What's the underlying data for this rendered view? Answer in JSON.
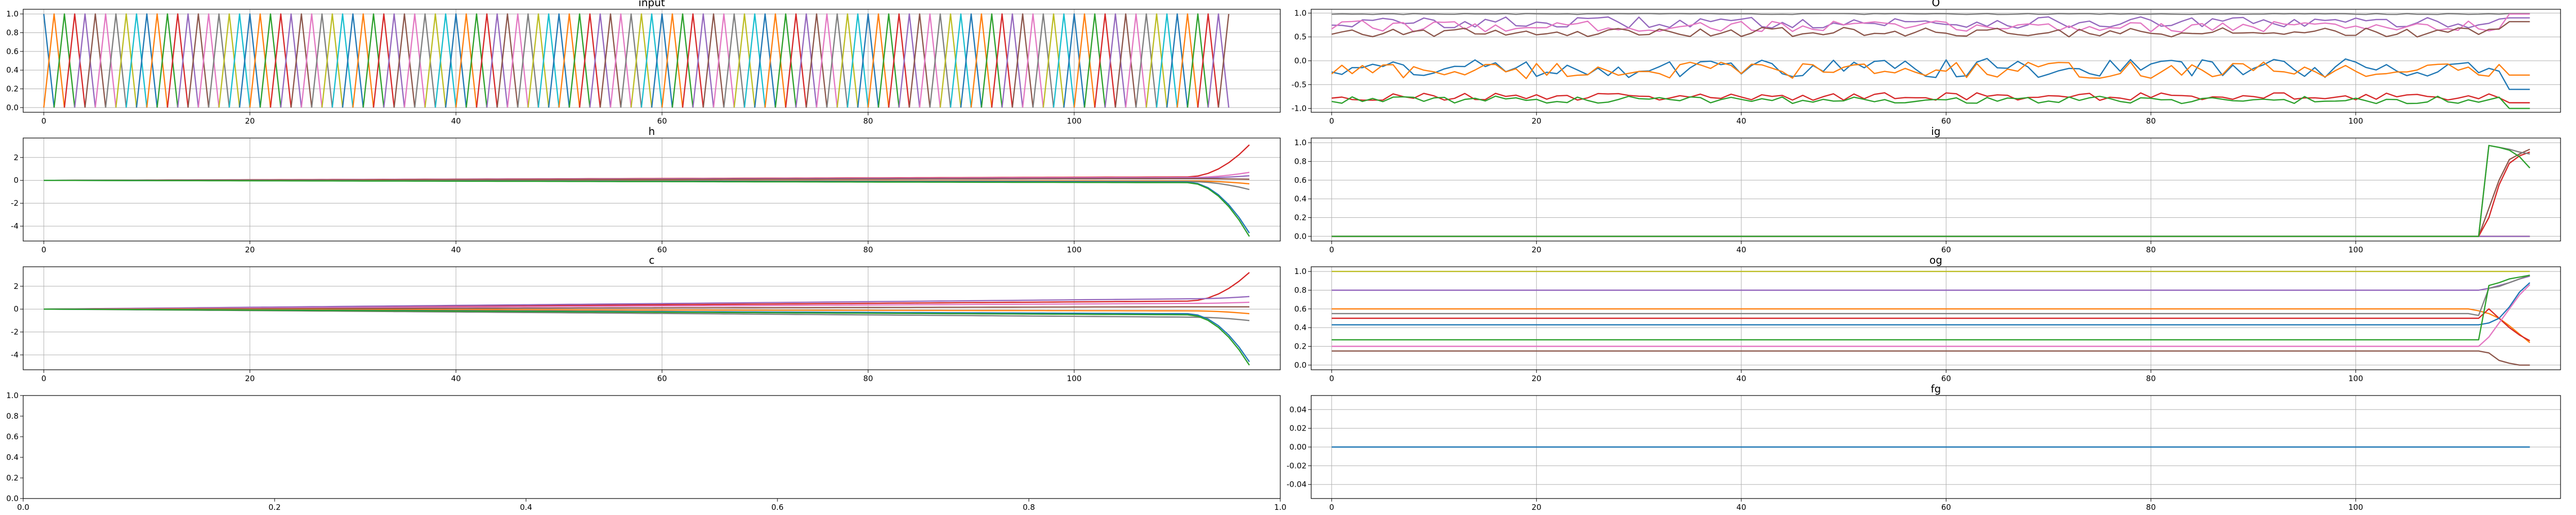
{
  "chart_data": [
    {
      "title": "input",
      "type": "line",
      "x_ticks": [
        "0",
        "20",
        "40",
        "60",
        "80",
        "100"
      ],
      "y_ticks": [
        "0.0",
        "0.2",
        "0.4",
        "0.6",
        "0.8",
        "1.0"
      ],
      "xlim": [
        -2,
        120
      ],
      "ylim": [
        -0.05,
        1.05
      ],
      "grid": true,
      "x": [
        0,
        115
      ],
      "series": [],
      "pattern": {
        "kind": "one_hot",
        "steps": 116,
        "value_high": 1.0,
        "value_low": 0.0
      }
    },
    {
      "title": "O",
      "type": "line",
      "x_ticks": [
        "0",
        "20",
        "40",
        "60",
        "80",
        "100"
      ],
      "y_ticks": [
        "-1.0",
        "-0.5",
        "0.0",
        "0.5",
        "1.0"
      ],
      "xlim": [
        -2,
        120
      ],
      "ylim": [
        -1.08,
        1.08
      ],
      "grid": true,
      "x": [
        0,
        117
      ],
      "series": [
        {
          "color": "#7f7f7f",
          "base": 0.98,
          "noise": 0.01,
          "end": 0.99
        },
        {
          "color": "#9467bd",
          "base": 0.8,
          "noise": 0.12,
          "end": 0.9
        },
        {
          "color": "#e377c2",
          "base": 0.72,
          "noise": 0.12,
          "end": 0.98
        },
        {
          "color": "#8c564b",
          "base": 0.6,
          "noise": 0.1,
          "end": 0.82
        },
        {
          "color": "#1f77b4",
          "base": -0.15,
          "noise": 0.2,
          "end": -0.6
        },
        {
          "color": "#ff7f0e",
          "base": -0.2,
          "noise": 0.18,
          "end": -0.3
        },
        {
          "color": "#d62728",
          "base": -0.75,
          "noise": 0.08,
          "end": -0.88
        },
        {
          "color": "#2ca02c",
          "base": -0.82,
          "noise": 0.08,
          "end": -1.0
        }
      ]
    },
    {
      "title": "h",
      "type": "line",
      "x_ticks": [
        "0",
        "20",
        "40",
        "60",
        "80",
        "100"
      ],
      "y_ticks": [
        "-4",
        "-2",
        "0",
        "2"
      ],
      "xlim": [
        -2,
        120
      ],
      "ylim": [
        -5.3,
        3.7
      ],
      "grid": true,
      "x": [
        0,
        117
      ],
      "series": [
        {
          "color": "#d62728",
          "drift": 0.3,
          "end": 3.1
        },
        {
          "color": "#e377c2",
          "drift": 0.25,
          "end": 0.7
        },
        {
          "color": "#9467bd",
          "drift": 0.2,
          "end": 0.4
        },
        {
          "color": "#8c564b",
          "drift": 0.15,
          "end": 0.1
        },
        {
          "color": "#ff7f0e",
          "drift": -0.05,
          "end": -0.3
        },
        {
          "color": "#7f7f7f",
          "drift": -0.1,
          "end": -0.8
        },
        {
          "color": "#1f77b4",
          "drift": -0.15,
          "end": -4.6
        },
        {
          "color": "#2ca02c",
          "drift": -0.2,
          "end": -4.9
        }
      ]
    },
    {
      "title": "ig",
      "type": "line",
      "x_ticks": [
        "0",
        "20",
        "40",
        "60",
        "80",
        "100"
      ],
      "y_ticks": [
        "0.0",
        "0.2",
        "0.4",
        "0.6",
        "0.8",
        "1.0"
      ],
      "xlim": [
        -2,
        120
      ],
      "ylim": [
        -0.05,
        1.05
      ],
      "grid": true,
      "x": [
        0,
        117
      ],
      "series": [
        {
          "color": "#1f77b4",
          "base": 0.0,
          "tail": [
            0.0,
            0.0,
            0.0,
            0.0,
            0.0,
            0.0
          ]
        },
        {
          "color": "#ff7f0e",
          "base": 0.0,
          "tail": [
            0.0,
            0.0,
            0.0,
            0.0,
            0.0,
            0.0
          ]
        },
        {
          "color": "#9467bd",
          "base": 0.0,
          "tail": [
            0.0,
            0.0,
            0.0,
            0.0,
            0.0,
            0.0
          ]
        },
        {
          "color": "#8c564b",
          "base": 0.0,
          "tail": [
            0.0,
            0.3,
            0.6,
            0.82,
            0.88,
            0.93
          ]
        },
        {
          "color": "#d62728",
          "base": 0.0,
          "tail": [
            0.0,
            0.2,
            0.55,
            0.78,
            0.86,
            0.9
          ]
        },
        {
          "color": "#7f7f7f",
          "base": 0.0,
          "tail": [
            0.0,
            0.97,
            0.95,
            0.93,
            0.9,
            0.88
          ]
        },
        {
          "color": "#2ca02c",
          "base": 0.0,
          "tail": [
            0.0,
            0.97,
            0.95,
            0.92,
            0.85,
            0.73
          ]
        }
      ]
    },
    {
      "title": "c",
      "type": "line",
      "x_ticks": [
        "0",
        "20",
        "40",
        "60",
        "80",
        "100"
      ],
      "y_ticks": [
        "-4",
        "-2",
        "0",
        "2"
      ],
      "xlim": [
        -2,
        120
      ],
      "ylim": [
        -5.3,
        3.7
      ],
      "grid": true,
      "x": [
        0,
        117
      ],
      "series": [
        {
          "color": "#d62728",
          "drift": 0.7,
          "end": 3.2
        },
        {
          "color": "#9467bd",
          "drift": 0.9,
          "end": 1.1
        },
        {
          "color": "#e377c2",
          "drift": 0.5,
          "end": 0.6
        },
        {
          "color": "#8c564b",
          "drift": 0.2,
          "end": 0.2
        },
        {
          "color": "#ff7f0e",
          "drift": -0.15,
          "end": -0.4
        },
        {
          "color": "#7f7f7f",
          "drift": -0.7,
          "end": -1.0
        },
        {
          "color": "#1f77b4",
          "drift": -0.4,
          "end": -4.6
        },
        {
          "color": "#2ca02c",
          "drift": -0.5,
          "end": -4.9
        }
      ]
    },
    {
      "title": "og",
      "type": "line",
      "x_ticks": [
        "0",
        "20",
        "40",
        "60",
        "80",
        "100"
      ],
      "y_ticks": [
        "0.0",
        "0.2",
        "0.4",
        "0.6",
        "0.8",
        "1.0"
      ],
      "xlim": [
        -2,
        120
      ],
      "ylim": [
        -0.05,
        1.05
      ],
      "grid": true,
      "x": [
        0,
        117
      ],
      "series": [
        {
          "color": "#bcbd22",
          "base": 1.0,
          "tail": [
            1.0,
            1.0,
            1.0,
            1.0,
            1.0,
            1.0
          ]
        },
        {
          "color": "#9467bd",
          "base": 0.8,
          "tail": [
            0.8,
            0.82,
            0.85,
            0.88,
            0.92,
            0.95
          ]
        },
        {
          "color": "#ff7f0e",
          "base": 0.6,
          "tail": [
            0.58,
            0.55,
            0.5,
            0.42,
            0.33,
            0.24
          ]
        },
        {
          "color": "#7f7f7f",
          "base": 0.55,
          "tail": [
            0.53,
            0.82,
            0.84,
            0.88,
            0.92,
            0.96
          ]
        },
        {
          "color": "#d62728",
          "base": 0.5,
          "tail": [
            0.5,
            0.6,
            0.5,
            0.4,
            0.32,
            0.26
          ]
        },
        {
          "color": "#1f77b4",
          "base": 0.43,
          "tail": [
            0.43,
            0.45,
            0.5,
            0.62,
            0.78,
            0.88
          ]
        },
        {
          "color": "#2ca02c",
          "base": 0.27,
          "tail": [
            0.27,
            0.85,
            0.88,
            0.92,
            0.94,
            0.96
          ]
        },
        {
          "color": "#e377c2",
          "base": 0.2,
          "tail": [
            0.2,
            0.3,
            0.45,
            0.6,
            0.75,
            0.86
          ]
        },
        {
          "color": "#8c564b",
          "base": 0.15,
          "tail": [
            0.15,
            0.13,
            0.05,
            0.02,
            0.0,
            0.0
          ]
        }
      ]
    },
    {
      "title": "",
      "type": "line",
      "x_ticks": [
        "0.0",
        "0.2",
        "0.4",
        "0.6",
        "0.8",
        "1.0"
      ],
      "y_ticks": [
        "0.0",
        "0.2",
        "0.4",
        "0.6",
        "0.8",
        "1.0"
      ],
      "xlim": [
        0,
        1
      ],
      "ylim": [
        0,
        1
      ],
      "grid": false,
      "x": [],
      "series": []
    },
    {
      "title": "fg",
      "type": "line",
      "x_ticks": [
        "0",
        "20",
        "40",
        "60",
        "80",
        "100"
      ],
      "y_ticks": [
        "-0.04",
        "-0.02",
        "0.00",
        "0.02",
        "0.04"
      ],
      "xlim": [
        -2,
        120
      ],
      "ylim": [
        -0.055,
        0.055
      ],
      "grid": true,
      "x": [
        0,
        117
      ],
      "series": [
        {
          "color": "#1f77b4",
          "base": 0.0,
          "tail": [
            0.0,
            0.0,
            0.0,
            0.0,
            0.0,
            0.0
          ]
        }
      ]
    }
  ]
}
